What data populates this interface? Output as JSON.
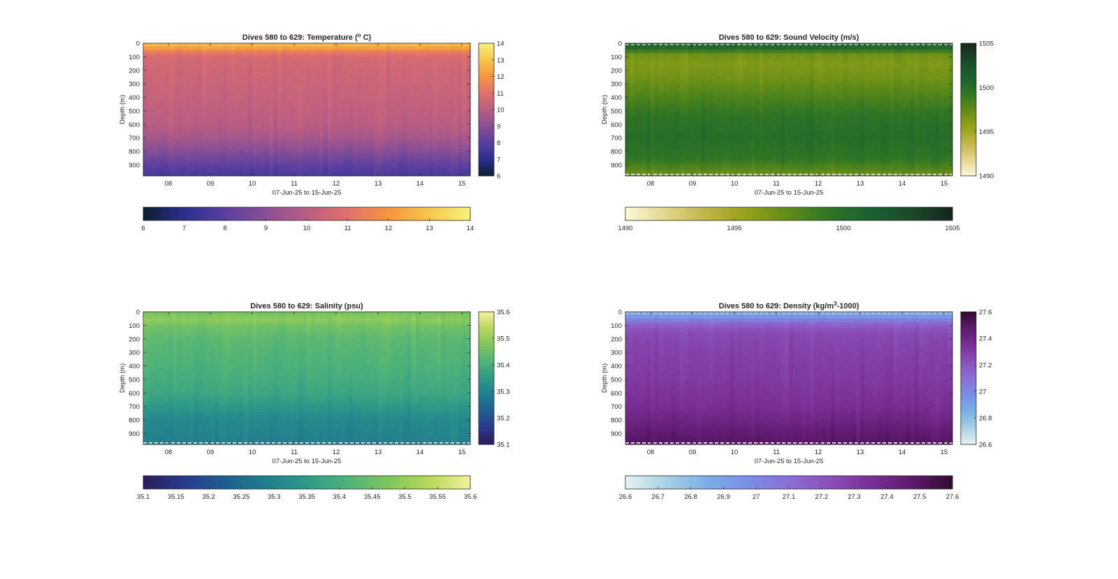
{
  "figure": {
    "x_axis_label": "07-Jun-25 to 15-Jun-25",
    "y_axis_label": "Depth (m)"
  },
  "chart_data": [
    {
      "type": "heatmap",
      "title_text": "Dives 580 to 629: Temperature (",
      "title_sup": "o",
      "title_after": " C)",
      "xlabel": "07-Jun-25 to 15-Jun-25",
      "ylabel": "Depth (m)",
      "x_ticks": [
        "08",
        "09",
        "10",
        "11",
        "12",
        "13",
        "14",
        "15"
      ],
      "x_range_days": [
        7.4,
        15.2
      ],
      "y_ticks": [
        0,
        100,
        200,
        300,
        400,
        500,
        600,
        700,
        800,
        900
      ],
      "ylim": [
        0,
        980
      ],
      "y_reversed": true,
      "colorbar_range": [
        6,
        14
      ],
      "colorbar_right_ticks": [
        "6",
        "7",
        "8",
        "9",
        "10",
        "11",
        "12",
        "13",
        "14"
      ],
      "colorbar_bottom_ticks": [
        "6",
        "7",
        "8",
        "9",
        "10",
        "11",
        "12",
        "13",
        "14"
      ],
      "colormap": [
        "#0b1d2f",
        "#2a2f8f",
        "#5a3fa0",
        "#8a4f95",
        "#b95d83",
        "#e0716a",
        "#f6953e",
        "#f7c64a",
        "#f6f27e"
      ],
      "profile_depth": [
        0,
        30,
        60,
        100,
        200,
        400,
        600,
        700,
        800,
        900,
        980
      ],
      "profile_value": [
        12.9,
        12.4,
        11.4,
        10.7,
        10.5,
        10.3,
        10.0,
        9.6,
        8.9,
        8.1,
        7.6
      ],
      "dashed_bottom": false,
      "dashed_top": false
    },
    {
      "type": "heatmap",
      "title_text": "Dives 580 to 629: Sound Velocity (m/s)",
      "title_sup": "",
      "title_after": "",
      "xlabel": "07-Jun-25 to 15-Jun-25",
      "ylabel": "Depth (m)",
      "x_ticks": [
        "08",
        "09",
        "10",
        "11",
        "12",
        "13",
        "14",
        "15"
      ],
      "x_range_days": [
        7.4,
        15.2
      ],
      "y_ticks": [
        0,
        100,
        200,
        300,
        400,
        500,
        600,
        700,
        800,
        900
      ],
      "ylim": [
        0,
        980
      ],
      "y_reversed": true,
      "colorbar_range": [
        1490,
        1505
      ],
      "colorbar_right_ticks": [
        "1490",
        "1495",
        "1500",
        "1505"
      ],
      "colorbar_bottom_ticks": [
        "1490",
        "1495",
        "1500",
        "1505"
      ],
      "colormap": [
        "#fcf8d8",
        "#e3d58c",
        "#c0b445",
        "#93a118",
        "#5f8b18",
        "#2f7424",
        "#1a6030",
        "#1a4a2a",
        "#16241a"
      ],
      "profile_depth": [
        0,
        40,
        80,
        150,
        250,
        400,
        550,
        700,
        850,
        950,
        980
      ],
      "profile_value": [
        1501.2,
        1500.2,
        1497.0,
        1496.3,
        1496.8,
        1498.2,
        1499.6,
        1500.0,
        1499.4,
        1497.5,
        1497.0
      ],
      "dashed_bottom": true,
      "dashed_top": true
    },
    {
      "type": "heatmap",
      "title_text": "Dives 580 to 629: Salinity (psu)",
      "title_sup": "",
      "title_after": "",
      "xlabel": "07-Jun-25 to 15-Jun-25",
      "ylabel": "Depth (m)",
      "x_ticks": [
        "08",
        "09",
        "10",
        "11",
        "12",
        "13",
        "14",
        "15"
      ],
      "x_range_days": [
        7.4,
        15.2
      ],
      "y_ticks": [
        0,
        100,
        200,
        300,
        400,
        500,
        600,
        700,
        800,
        900
      ],
      "ylim": [
        0,
        980
      ],
      "y_reversed": true,
      "colorbar_range": [
        35.1,
        35.6
      ],
      "colorbar_right_ticks": [
        "35.1",
        "35.2",
        "35.3",
        "35.4",
        "35.5",
        "35.6"
      ],
      "colorbar_bottom_ticks": [
        "35.1",
        "35.15",
        "35.2",
        "35.25",
        "35.3",
        "35.35",
        "35.4",
        "35.45",
        "35.5",
        "35.55",
        "35.6"
      ],
      "colormap": [
        "#2a1b5c",
        "#2a3a8c",
        "#1f5d92",
        "#217e8e",
        "#2f9a88",
        "#4fb279",
        "#7fc65e",
        "#b7d85a",
        "#f4f0a0"
      ],
      "profile_depth": [
        0,
        60,
        100,
        200,
        400,
        600,
        800,
        900,
        980
      ],
      "profile_value": [
        35.46,
        35.49,
        35.46,
        35.43,
        35.41,
        35.38,
        35.31,
        35.3,
        35.29
      ],
      "dashed_bottom": true,
      "dashed_top": false
    },
    {
      "type": "heatmap",
      "title_text": "Dives 580 to 629: Density (kg/m",
      "title_sup": "3",
      "title_after": "-1000)",
      "xlabel": "07-Jun-25 to 15-Jun-25",
      "ylabel": "Depth (m)",
      "x_ticks": [
        "08",
        "09",
        "10",
        "11",
        "12",
        "13",
        "14",
        "15"
      ],
      "x_range_days": [
        7.4,
        15.2
      ],
      "y_ticks": [
        0,
        100,
        200,
        300,
        400,
        500,
        600,
        700,
        800,
        900
      ],
      "ylim": [
        0,
        980
      ],
      "y_reversed": true,
      "colorbar_range": [
        26.6,
        27.6
      ],
      "colorbar_right_ticks": [
        "26.6",
        "26.8",
        "27",
        "27.2",
        "27.4",
        "27.6"
      ],
      "colorbar_bottom_ticks": [
        "26.6",
        "26.7",
        "26.8",
        "26.9",
        "27",
        "27.1",
        "27.2",
        "27.3",
        "27.4",
        "27.5",
        "27.6"
      ],
      "colormap": [
        "#e8f2f2",
        "#a8d0e4",
        "#7aaee6",
        "#7a8ee6",
        "#8b6fd6",
        "#8a4fb8",
        "#7a2f96",
        "#5e1a6e",
        "#300a30"
      ],
      "profile_depth": [
        0,
        40,
        80,
        150,
        300,
        500,
        700,
        800,
        900,
        980
      ],
      "profile_value": [
        26.85,
        26.95,
        27.12,
        27.24,
        27.28,
        27.31,
        27.36,
        27.41,
        27.47,
        27.5
      ],
      "dashed_bottom": true,
      "dashed_top": true
    }
  ]
}
